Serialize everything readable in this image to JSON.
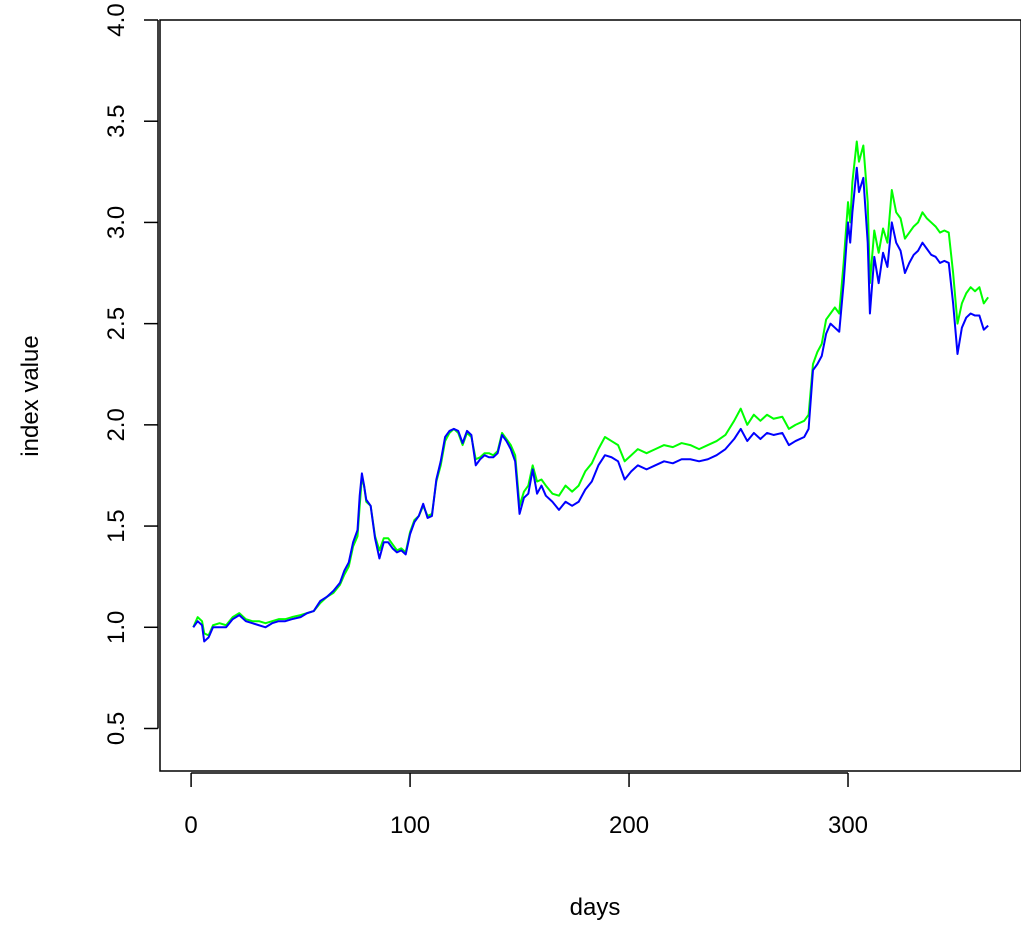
{
  "chart_data": {
    "type": "line",
    "title": "",
    "xlabel": "days",
    "ylabel": "index value",
    "xlim": [
      -14.2,
      379
    ],
    "ylim": [
      0.29,
      4.0
    ],
    "xticks": [
      0,
      100,
      200,
      300
    ],
    "xtick_labels": [
      "0",
      "100",
      "200",
      "300"
    ],
    "yticks": [
      0.5,
      1.0,
      1.5,
      2.0,
      2.5,
      3.0,
      3.5,
      4.0
    ],
    "ytick_labels": [
      "0.5",
      "1.0",
      "1.5",
      "2.0",
      "2.5",
      "3.0",
      "3.5",
      "4.0"
    ],
    "grid": false,
    "legend": "none",
    "series": [
      {
        "color": "#00ff00",
        "points": [
          [
            1,
            1.0
          ],
          [
            3,
            1.05
          ],
          [
            5,
            1.03
          ],
          [
            6,
            0.97
          ],
          [
            8,
            0.96
          ],
          [
            10,
            1.01
          ],
          [
            13,
            1.02
          ],
          [
            16,
            1.01
          ],
          [
            19,
            1.05
          ],
          [
            22,
            1.07
          ],
          [
            25,
            1.04
          ],
          [
            28,
            1.03
          ],
          [
            31,
            1.03
          ],
          [
            34,
            1.02
          ],
          [
            37,
            1.03
          ],
          [
            40,
            1.04
          ],
          [
            43,
            1.04
          ],
          [
            46,
            1.05
          ],
          [
            50,
            1.06
          ],
          [
            53,
            1.07
          ],
          [
            56,
            1.08
          ],
          [
            59,
            1.12
          ],
          [
            62,
            1.15
          ],
          [
            65,
            1.17
          ],
          [
            68,
            1.21
          ],
          [
            70,
            1.26
          ],
          [
            72,
            1.3
          ],
          [
            74,
            1.4
          ],
          [
            76,
            1.45
          ],
          [
            77,
            1.6
          ],
          [
            78,
            1.74
          ],
          [
            79,
            1.7
          ],
          [
            80,
            1.62
          ],
          [
            82,
            1.6
          ],
          [
            84,
            1.45
          ],
          [
            86,
            1.38
          ],
          [
            88,
            1.44
          ],
          [
            90,
            1.44
          ],
          [
            92,
            1.41
          ],
          [
            94,
            1.38
          ],
          [
            96,
            1.39
          ],
          [
            98,
            1.37
          ],
          [
            100,
            1.47
          ],
          [
            102,
            1.53
          ],
          [
            104,
            1.55
          ],
          [
            106,
            1.6
          ],
          [
            108,
            1.55
          ],
          [
            110,
            1.56
          ],
          [
            112,
            1.72
          ],
          [
            114,
            1.8
          ],
          [
            116,
            1.92
          ],
          [
            118,
            1.96
          ],
          [
            120,
            1.98
          ],
          [
            122,
            1.96
          ],
          [
            124,
            1.9
          ],
          [
            126,
            1.96
          ],
          [
            128,
            1.94
          ],
          [
            130,
            1.83
          ],
          [
            132,
            1.84
          ],
          [
            134,
            1.86
          ],
          [
            136,
            1.86
          ],
          [
            138,
            1.85
          ],
          [
            140,
            1.87
          ],
          [
            142,
            1.96
          ],
          [
            144,
            1.93
          ],
          [
            146,
            1.9
          ],
          [
            148,
            1.85
          ],
          [
            150,
            1.6
          ],
          [
            152,
            1.67
          ],
          [
            154,
            1.7
          ],
          [
            156,
            1.8
          ],
          [
            158,
            1.72
          ],
          [
            160,
            1.73
          ],
          [
            162,
            1.7
          ],
          [
            165,
            1.66
          ],
          [
            168,
            1.65
          ],
          [
            171,
            1.7
          ],
          [
            174,
            1.67
          ],
          [
            177,
            1.7
          ],
          [
            180,
            1.77
          ],
          [
            183,
            1.81
          ],
          [
            186,
            1.88
          ],
          [
            189,
            1.94
          ],
          [
            192,
            1.92
          ],
          [
            195,
            1.9
          ],
          [
            198,
            1.82
          ],
          [
            201,
            1.85
          ],
          [
            204,
            1.88
          ],
          [
            208,
            1.86
          ],
          [
            212,
            1.88
          ],
          [
            216,
            1.9
          ],
          [
            220,
            1.89
          ],
          [
            224,
            1.91
          ],
          [
            228,
            1.9
          ],
          [
            232,
            1.88
          ],
          [
            236,
            1.9
          ],
          [
            240,
            1.92
          ],
          [
            244,
            1.95
          ],
          [
            248,
            2.02
          ],
          [
            251,
            2.08
          ],
          [
            254,
            2.0
          ],
          [
            257,
            2.05
          ],
          [
            260,
            2.02
          ],
          [
            263,
            2.05
          ],
          [
            266,
            2.03
          ],
          [
            270,
            2.04
          ],
          [
            273,
            1.98
          ],
          [
            276,
            2.0
          ],
          [
            280,
            2.02
          ],
          [
            282,
            2.05
          ],
          [
            284,
            2.3
          ],
          [
            286,
            2.36
          ],
          [
            288,
            2.4
          ],
          [
            290,
            2.52
          ],
          [
            292,
            2.55
          ],
          [
            294,
            2.58
          ],
          [
            296,
            2.55
          ],
          [
            298,
            2.8
          ],
          [
            300,
            3.1
          ],
          [
            301,
            3.0
          ],
          [
            302,
            3.2
          ],
          [
            304,
            3.4
          ],
          [
            305,
            3.3
          ],
          [
            307,
            3.38
          ],
          [
            309,
            3.1
          ],
          [
            310,
            2.7
          ],
          [
            312,
            2.96
          ],
          [
            314,
            2.85
          ],
          [
            316,
            2.97
          ],
          [
            318,
            2.9
          ],
          [
            320,
            3.16
          ],
          [
            322,
            3.05
          ],
          [
            324,
            3.02
          ],
          [
            326,
            2.92
          ],
          [
            328,
            2.95
          ],
          [
            330,
            2.98
          ],
          [
            332,
            3.0
          ],
          [
            334,
            3.05
          ],
          [
            336,
            3.02
          ],
          [
            338,
            3.0
          ],
          [
            340,
            2.98
          ],
          [
            342,
            2.95
          ],
          [
            344,
            2.96
          ],
          [
            346,
            2.95
          ],
          [
            348,
            2.75
          ],
          [
            350,
            2.5
          ],
          [
            352,
            2.6
          ],
          [
            354,
            2.65
          ],
          [
            356,
            2.68
          ],
          [
            358,
            2.66
          ],
          [
            360,
            2.68
          ],
          [
            362,
            2.6
          ],
          [
            364,
            2.63
          ]
        ]
      },
      {
        "color": "#0000ff",
        "points": [
          [
            1,
            1.0
          ],
          [
            3,
            1.03
          ],
          [
            5,
            1.01
          ],
          [
            6,
            0.93
          ],
          [
            8,
            0.95
          ],
          [
            10,
            1.0
          ],
          [
            13,
            1.0
          ],
          [
            16,
            1.0
          ],
          [
            19,
            1.04
          ],
          [
            22,
            1.06
          ],
          [
            25,
            1.03
          ],
          [
            28,
            1.02
          ],
          [
            31,
            1.01
          ],
          [
            34,
            1.0
          ],
          [
            37,
            1.02
          ],
          [
            40,
            1.03
          ],
          [
            43,
            1.03
          ],
          [
            46,
            1.04
          ],
          [
            50,
            1.05
          ],
          [
            53,
            1.07
          ],
          [
            56,
            1.08
          ],
          [
            59,
            1.13
          ],
          [
            62,
            1.15
          ],
          [
            65,
            1.18
          ],
          [
            68,
            1.22
          ],
          [
            70,
            1.28
          ],
          [
            72,
            1.32
          ],
          [
            74,
            1.42
          ],
          [
            76,
            1.48
          ],
          [
            77,
            1.65
          ],
          [
            78,
            1.76
          ],
          [
            79,
            1.7
          ],
          [
            80,
            1.63
          ],
          [
            82,
            1.6
          ],
          [
            84,
            1.44
          ],
          [
            86,
            1.34
          ],
          [
            88,
            1.42
          ],
          [
            90,
            1.42
          ],
          [
            92,
            1.39
          ],
          [
            94,
            1.37
          ],
          [
            96,
            1.38
          ],
          [
            98,
            1.36
          ],
          [
            100,
            1.46
          ],
          [
            102,
            1.52
          ],
          [
            104,
            1.55
          ],
          [
            106,
            1.61
          ],
          [
            108,
            1.54
          ],
          [
            110,
            1.55
          ],
          [
            112,
            1.73
          ],
          [
            114,
            1.82
          ],
          [
            116,
            1.94
          ],
          [
            118,
            1.97
          ],
          [
            120,
            1.98
          ],
          [
            122,
            1.97
          ],
          [
            124,
            1.91
          ],
          [
            126,
            1.97
          ],
          [
            128,
            1.95
          ],
          [
            130,
            1.8
          ],
          [
            132,
            1.83
          ],
          [
            134,
            1.85
          ],
          [
            136,
            1.84
          ],
          [
            138,
            1.84
          ],
          [
            140,
            1.86
          ],
          [
            142,
            1.95
          ],
          [
            144,
            1.92
          ],
          [
            146,
            1.88
          ],
          [
            148,
            1.82
          ],
          [
            150,
            1.56
          ],
          [
            152,
            1.64
          ],
          [
            154,
            1.66
          ],
          [
            156,
            1.78
          ],
          [
            158,
            1.66
          ],
          [
            160,
            1.7
          ],
          [
            162,
            1.65
          ],
          [
            165,
            1.62
          ],
          [
            168,
            1.58
          ],
          [
            171,
            1.62
          ],
          [
            174,
            1.6
          ],
          [
            177,
            1.62
          ],
          [
            180,
            1.68
          ],
          [
            183,
            1.72
          ],
          [
            186,
            1.8
          ],
          [
            189,
            1.85
          ],
          [
            192,
            1.84
          ],
          [
            195,
            1.82
          ],
          [
            198,
            1.73
          ],
          [
            201,
            1.77
          ],
          [
            204,
            1.8
          ],
          [
            208,
            1.78
          ],
          [
            212,
            1.8
          ],
          [
            216,
            1.82
          ],
          [
            220,
            1.81
          ],
          [
            224,
            1.83
          ],
          [
            228,
            1.83
          ],
          [
            232,
            1.82
          ],
          [
            236,
            1.83
          ],
          [
            240,
            1.85
          ],
          [
            244,
            1.88
          ],
          [
            248,
            1.93
          ],
          [
            251,
            1.98
          ],
          [
            254,
            1.92
          ],
          [
            257,
            1.96
          ],
          [
            260,
            1.93
          ],
          [
            263,
            1.96
          ],
          [
            266,
            1.95
          ],
          [
            270,
            1.96
          ],
          [
            273,
            1.9
          ],
          [
            276,
            1.92
          ],
          [
            280,
            1.94
          ],
          [
            282,
            1.98
          ],
          [
            284,
            2.27
          ],
          [
            286,
            2.3
          ],
          [
            288,
            2.34
          ],
          [
            290,
            2.45
          ],
          [
            292,
            2.5
          ],
          [
            294,
            2.48
          ],
          [
            296,
            2.46
          ],
          [
            298,
            2.7
          ],
          [
            300,
            3.0
          ],
          [
            301,
            2.9
          ],
          [
            302,
            3.05
          ],
          [
            304,
            3.27
          ],
          [
            305,
            3.15
          ],
          [
            307,
            3.22
          ],
          [
            309,
            2.9
          ],
          [
            310,
            2.55
          ],
          [
            312,
            2.83
          ],
          [
            314,
            2.7
          ],
          [
            316,
            2.85
          ],
          [
            318,
            2.78
          ],
          [
            320,
            3.0
          ],
          [
            322,
            2.9
          ],
          [
            324,
            2.86
          ],
          [
            326,
            2.75
          ],
          [
            328,
            2.8
          ],
          [
            330,
            2.84
          ],
          [
            332,
            2.86
          ],
          [
            334,
            2.9
          ],
          [
            336,
            2.87
          ],
          [
            338,
            2.84
          ],
          [
            340,
            2.83
          ],
          [
            342,
            2.8
          ],
          [
            344,
            2.81
          ],
          [
            346,
            2.8
          ],
          [
            348,
            2.6
          ],
          [
            350,
            2.35
          ],
          [
            352,
            2.48
          ],
          [
            354,
            2.53
          ],
          [
            356,
            2.55
          ],
          [
            358,
            2.54
          ],
          [
            360,
            2.54
          ],
          [
            362,
            2.47
          ],
          [
            364,
            2.49
          ]
        ]
      }
    ]
  }
}
